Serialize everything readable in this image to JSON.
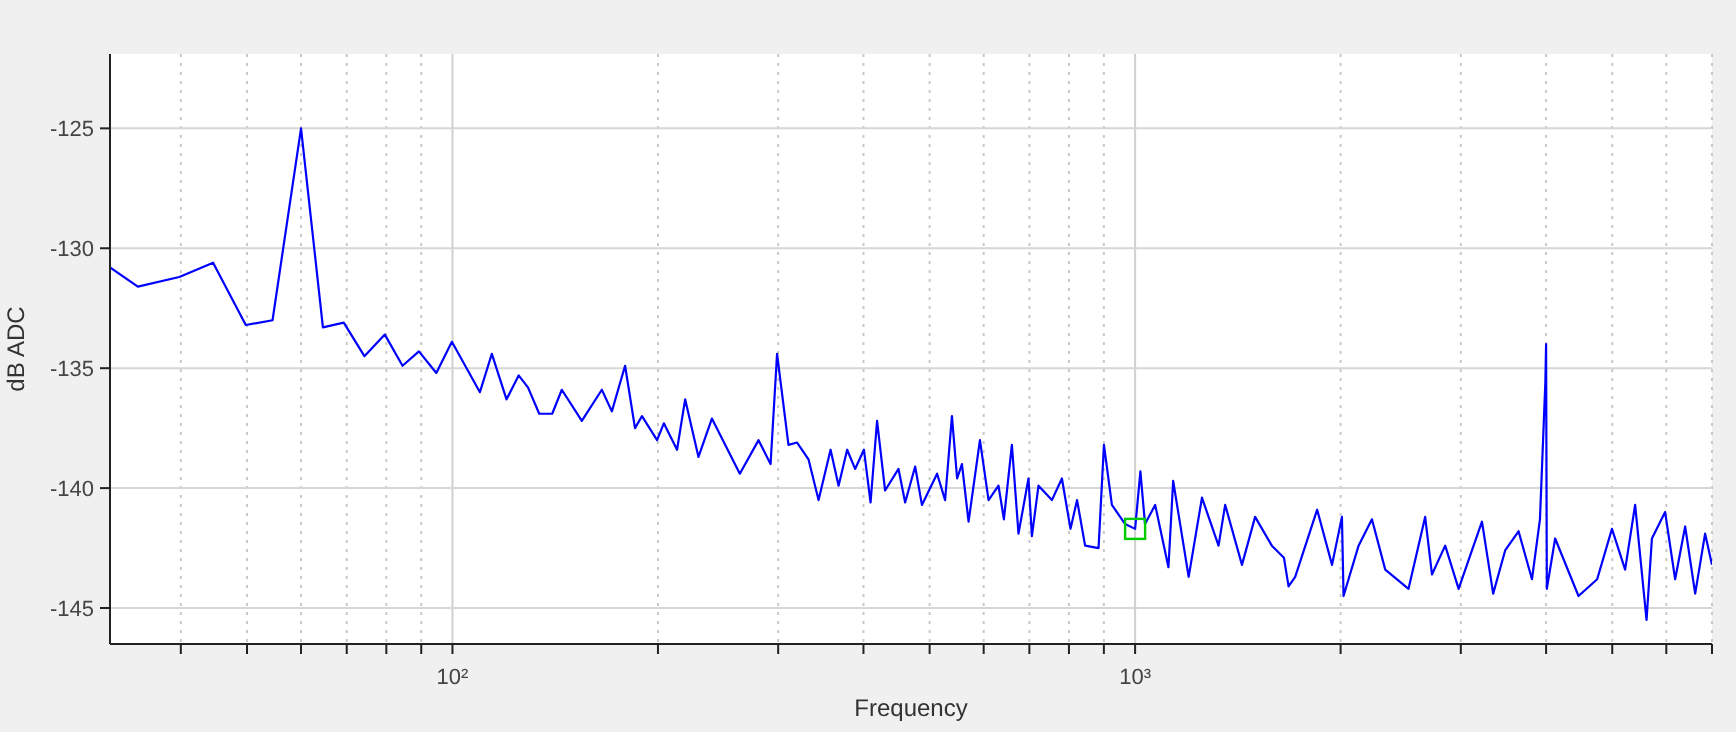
{
  "chart_data": {
    "type": "line",
    "xlabel": "Frequency",
    "ylabel": "dB ADC",
    "log": "x",
    "grid": true,
    "xlim": [
      31.5,
      7000
    ],
    "ylim": [
      -146.5,
      -121.9
    ],
    "xticks": [
      {
        "value": 40,
        "label": null
      },
      {
        "value": 50,
        "label": null
      },
      {
        "value": 60,
        "label": null
      },
      {
        "value": 70,
        "label": null
      },
      {
        "value": 80,
        "label": null
      },
      {
        "value": 90,
        "label": null
      },
      {
        "value": 100,
        "label": "10²"
      },
      {
        "value": 200,
        "label": null
      },
      {
        "value": 300,
        "label": null
      },
      {
        "value": 400,
        "label": null
      },
      {
        "value": 500,
        "label": null
      },
      {
        "value": 600,
        "label": null
      },
      {
        "value": 700,
        "label": null
      },
      {
        "value": 800,
        "label": null
      },
      {
        "value": 900,
        "label": null
      },
      {
        "value": 1000,
        "label": "10³"
      },
      {
        "value": 2000,
        "label": null
      },
      {
        "value": 3000,
        "label": null
      },
      {
        "value": 4000,
        "label": null
      },
      {
        "value": 5000,
        "label": null
      },
      {
        "value": 6000,
        "label": null
      },
      {
        "value": 7000,
        "label": null
      }
    ],
    "yticks": [
      -145,
      -140,
      -135,
      -130,
      -125
    ],
    "series": [
      {
        "color": "#0000ff",
        "x": [
          31.5,
          34.6,
          39.8,
          44.6,
          49.8,
          54.5,
          60,
          64.6,
          69.3,
          74.3,
          79.6,
          84.5,
          89.3,
          94.7,
          99.8,
          109.7,
          114.2,
          120,
          125,
          129,
          134,
          140,
          144.6,
          154.7,
          165.5,
          171.2,
          179,
          185.1,
          189.5,
          199.4,
          204,
          213.3,
          219.2,
          229.3,
          239.9,
          263.6,
          280.8,
          292.4,
          298.9,
          310.6,
          319.8,
          332.3,
          343.8,
          358,
          367.8,
          378.6,
          388.9,
          400.6,
          409.7,
          418.8,
          430.3,
          450.2,
          460.4,
          476.2,
          487.2,
          512.8,
          526.8,
          539.1,
          548.6,
          557.6,
          570.2,
          592.5,
          610,
          630.8,
          642.4,
          659.9,
          674.8,
          697.9,
          706,
          721.9,
          755.3,
          781.2,
          804.2,
          822.2,
          844.8,
          884,
          900.2,
          924.7,
          967,
          1000,
          1018,
          1034,
          1070,
          1119,
          1137,
          1198,
          1253,
          1325,
          1355,
          1434,
          1499,
          1586,
          1652,
          1678,
          1716,
          1848,
          1943,
          2009,
          2020,
          2125,
          2223,
          2325,
          2515,
          2660,
          2722,
          2846,
          2978,
          3115,
          3222,
          3346,
          3484,
          3645,
          3814,
          3918,
          3990,
          4000,
          4010,
          4124,
          4462,
          4752,
          4995,
          5222,
          5401,
          5613,
          5716,
          5976,
          6182,
          6394,
          6614,
          6839,
          7000
        ],
        "values": [
          -130.8,
          -131.6,
          -131.2,
          -130.6,
          -133.2,
          -133.0,
          -125.0,
          -133.3,
          -133.1,
          -134.5,
          -133.6,
          -134.9,
          -134.3,
          -135.2,
          -133.9,
          -136.0,
          -134.4,
          -136.3,
          -135.3,
          -135.8,
          -136.9,
          -136.9,
          -135.9,
          -137.2,
          -135.9,
          -136.8,
          -134.9,
          -137.5,
          -137.0,
          -138.0,
          -137.3,
          -138.4,
          -136.3,
          -138.7,
          -137.1,
          -139.4,
          -138.0,
          -139.0,
          -134.4,
          -138.2,
          -138.1,
          -138.8,
          -140.5,
          -138.4,
          -139.9,
          -138.4,
          -139.2,
          -138.4,
          -140.6,
          -137.2,
          -140.1,
          -139.2,
          -140.6,
          -139.1,
          -140.7,
          -139.4,
          -140.5,
          -137.0,
          -139.6,
          -139.0,
          -141.4,
          -138.0,
          -140.5,
          -139.9,
          -141.3,
          -138.2,
          -141.9,
          -139.6,
          -142.0,
          -139.9,
          -140.5,
          -139.6,
          -141.7,
          -140.5,
          -142.4,
          -142.5,
          -138.2,
          -140.7,
          -141.5,
          -141.7,
          -139.3,
          -141.5,
          -140.7,
          -143.3,
          -139.7,
          -143.7,
          -140.4,
          -142.4,
          -140.7,
          -143.2,
          -141.2,
          -142.4,
          -142.9,
          -144.1,
          -143.7,
          -140.9,
          -143.2,
          -141.2,
          -144.5,
          -142.4,
          -141.3,
          -143.4,
          -144.2,
          -141.2,
          -143.6,
          -142.4,
          -144.2,
          -142.6,
          -141.4,
          -144.4,
          -142.6,
          -141.8,
          -143.8,
          -141.3,
          -135.6,
          -134.0,
          -144.2,
          -142.1,
          -144.5,
          -143.8,
          -141.7,
          -143.4,
          -140.7,
          -145.5,
          -142.1,
          -141.0,
          -143.8,
          -141.6,
          -144.4,
          -141.9,
          -143.2
        ]
      },
      {
        "type": "scatter",
        "color": "#00cc00",
        "marker": "square",
        "x": [
          1000
        ],
        "values": [
          -141.7
        ]
      }
    ]
  }
}
